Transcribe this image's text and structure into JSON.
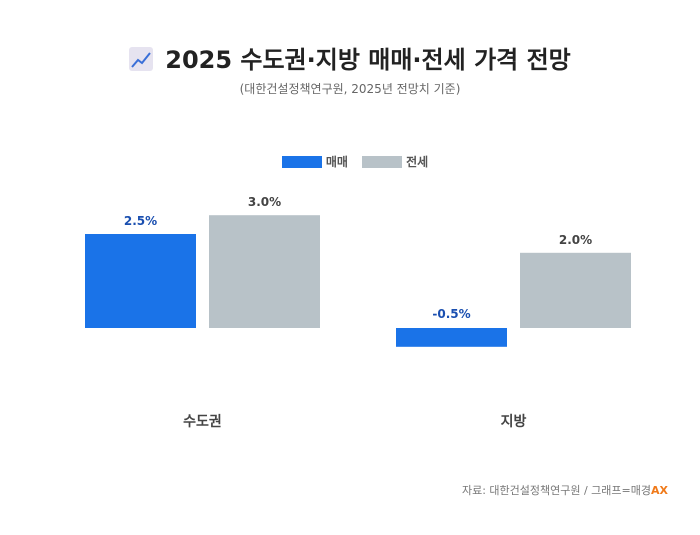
{
  "header": {
    "title": "2025 수도권·지방 매매·전세 가격 전망",
    "subtitle": "(대한건설정책연구원, 2025년 전망치 기준)",
    "icon": "chart-increasing-icon"
  },
  "source": {
    "text": "자료: 대한건설정책연구원 / 그래프=매경",
    "brand": "AX"
  },
  "chart_data": {
    "type": "bar",
    "title": "2025 수도권·지방 매매·전세 가격 전망",
    "categories": [
      "수도권",
      "지방"
    ],
    "series": [
      {
        "name": "매매",
        "values": [
          2.5,
          -0.5
        ],
        "labels": [
          "2.5%",
          "-0.5%"
        ],
        "color": "#1a73e8"
      },
      {
        "name": "전세",
        "values": [
          3.0,
          2.0
        ],
        "labels": [
          "3.0%",
          "2.0%"
        ],
        "color": "#b8c2c8"
      }
    ],
    "legend": "top-center",
    "grid": false,
    "ylim": [
      -0.5,
      3.0
    ],
    "xlabel": "",
    "ylabel": ""
  }
}
